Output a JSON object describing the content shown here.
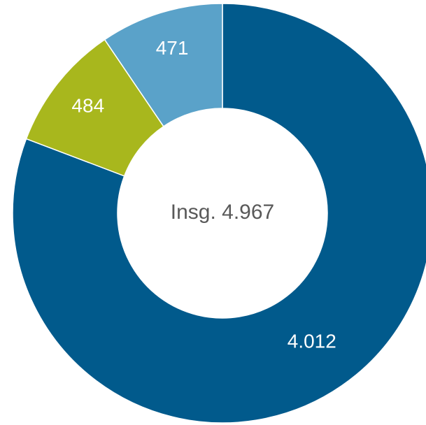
{
  "chart_data": {
    "type": "donut",
    "values": [
      4012,
      484,
      471
    ],
    "value_labels": [
      "4.012",
      "484",
      "471"
    ],
    "colors": [
      "#015a8c",
      "#a8b71d",
      "#5aa2c9"
    ],
    "center_label": "Insg. 4.967"
  }
}
